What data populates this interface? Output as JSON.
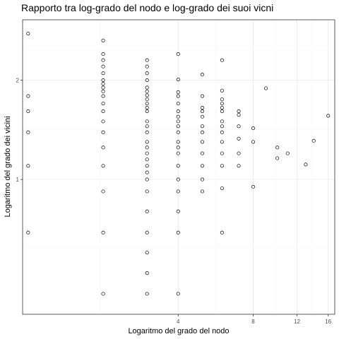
{
  "chart_data": {
    "type": "scatter",
    "title": "Rapporto tra log-grado del nodo e log-grado dei suoi vicni",
    "xlabel": "Logaritmo del grado del nodo",
    "ylabel": "Logaritmo del grado dei vicini",
    "x_scale": "log",
    "y_scale": "log",
    "xlim": [
      0.95,
      17
    ],
    "ylim": [
      0.39,
      3.05
    ],
    "x_ticks": [
      4,
      8,
      12,
      16
    ],
    "x_tick_labels": [
      "4",
      "8",
      "12",
      "16"
    ],
    "y_ticks": [
      1,
      2
    ],
    "y_tick_labels": [
      "1",
      "2"
    ],
    "grid": true,
    "legend": "none",
    "points": [
      [
        1,
        2.77
      ],
      [
        1,
        1.79
      ],
      [
        1,
        1.61
      ],
      [
        1,
        1.39
      ],
      [
        1,
        1.1
      ],
      [
        1,
        0.69
      ],
      [
        2,
        2.64
      ],
      [
        2,
        2.4
      ],
      [
        2,
        2.3
      ],
      [
        2,
        2.2
      ],
      [
        2,
        2.1
      ],
      [
        2,
        2.0
      ],
      [
        2,
        1.95
      ],
      [
        2,
        1.9
      ],
      [
        2,
        1.85
      ],
      [
        2,
        1.79
      ],
      [
        2,
        1.7
      ],
      [
        2,
        1.61
      ],
      [
        2,
        1.5
      ],
      [
        2,
        1.39
      ],
      [
        2,
        1.25
      ],
      [
        2,
        1.1
      ],
      [
        2,
        0.92
      ],
      [
        2,
        0.69
      ],
      [
        2,
        0.45
      ],
      [
        3,
        2.3
      ],
      [
        3,
        2.2
      ],
      [
        3,
        2.1
      ],
      [
        3,
        2.0
      ],
      [
        3,
        1.9
      ],
      [
        3,
        1.85
      ],
      [
        3,
        1.8
      ],
      [
        3,
        1.75
      ],
      [
        3,
        1.7
      ],
      [
        3,
        1.65
      ],
      [
        3,
        1.61
      ],
      [
        3,
        1.5
      ],
      [
        3,
        1.45
      ],
      [
        3,
        1.39
      ],
      [
        3,
        1.3
      ],
      [
        3,
        1.25
      ],
      [
        3,
        1.2
      ],
      [
        3,
        1.15
      ],
      [
        3,
        1.1
      ],
      [
        3,
        1.05
      ],
      [
        3,
        1.0
      ],
      [
        3,
        0.92
      ],
      [
        3,
        0.8
      ],
      [
        3,
        0.69
      ],
      [
        3,
        0.6
      ],
      [
        3,
        0.52
      ],
      [
        3,
        0.45
      ],
      [
        4,
        2.4
      ],
      [
        4,
        2.01
      ],
      [
        4,
        1.84
      ],
      [
        4,
        1.79
      ],
      [
        4,
        1.7
      ],
      [
        4,
        1.61
      ],
      [
        4,
        1.55
      ],
      [
        4,
        1.5
      ],
      [
        4,
        1.45
      ],
      [
        4,
        1.39
      ],
      [
        4,
        1.3
      ],
      [
        4,
        1.25
      ],
      [
        4,
        1.2
      ],
      [
        4,
        1.1
      ],
      [
        4,
        1.0
      ],
      [
        4,
        0.92
      ],
      [
        4,
        0.8
      ],
      [
        4,
        0.69
      ],
      [
        4,
        0.45
      ],
      [
        5,
        2.08
      ],
      [
        5,
        1.79
      ],
      [
        5,
        1.65
      ],
      [
        5,
        1.61
      ],
      [
        5,
        1.55
      ],
      [
        5,
        1.45
      ],
      [
        5,
        1.39
      ],
      [
        5,
        1.3
      ],
      [
        5,
        1.2
      ],
      [
        5,
        1.1
      ],
      [
        5,
        1.0
      ],
      [
        5,
        0.92
      ],
      [
        6,
        2.3
      ],
      [
        6,
        1.86
      ],
      [
        6,
        1.75
      ],
      [
        6,
        1.7
      ],
      [
        6,
        1.65
      ],
      [
        6,
        1.61
      ],
      [
        6,
        1.5
      ],
      [
        6,
        1.45
      ],
      [
        6,
        1.39
      ],
      [
        6,
        1.3
      ],
      [
        6,
        1.2
      ],
      [
        6,
        1.1
      ],
      [
        6,
        0.94
      ],
      [
        6,
        0.69
      ],
      [
        7,
        1.61
      ],
      [
        7,
        1.57
      ],
      [
        7,
        1.45
      ],
      [
        7,
        1.33
      ],
      [
        7,
        1.2
      ],
      [
        7,
        1.1
      ],
      [
        8,
        1.43
      ],
      [
        8,
        1.3
      ],
      [
        8,
        0.95
      ],
      [
        9,
        1.89
      ],
      [
        10,
        1.25
      ],
      [
        10,
        1.16
      ],
      [
        11,
        1.2
      ],
      [
        13,
        1.11
      ],
      [
        14,
        1.31
      ],
      [
        16,
        1.56
      ]
    ]
  }
}
